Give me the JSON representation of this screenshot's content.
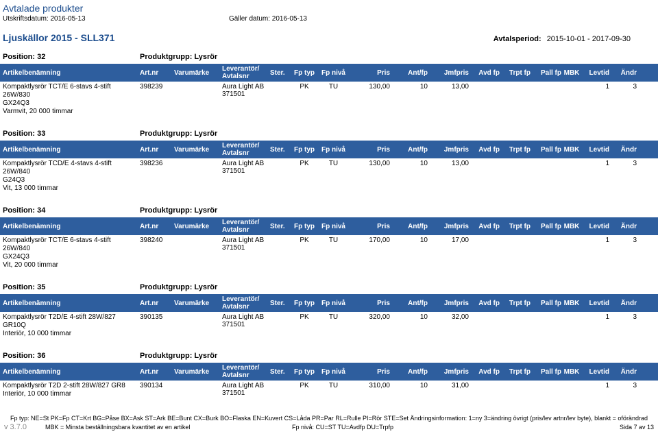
{
  "doc": {
    "title": "Avtalade produkter",
    "printLabel": "Utskriftsdatum: 2016-05-13",
    "validLabel": "Gäller datum: 2016-05-13"
  },
  "section": {
    "title": "Ljuskällor 2015 - SLL371",
    "periodLabel": "Avtalsperiod:",
    "periodValue": "2015-10-01 - 2017-09-30"
  },
  "headers": {
    "name": "Artikelbenämning",
    "artnr": "Art.nr",
    "varum": "Varumärke",
    "lev": "Leverantör/",
    "lev2": "Avtalsnr",
    "ster": "Ster.",
    "fptyp": "Fp typ",
    "fpniva": "Fp nivå",
    "pris": "Pris",
    "antfp": "Ant/fp",
    "jmfpris": "Jmfpris",
    "avdfp": "Avd fp",
    "trptfp": "Trpt fp",
    "pallfp": "Pall fp",
    "mbk": "MBK",
    "levtid": "Levtid",
    "andr": "Ändr"
  },
  "positions": [
    {
      "posLabel": "Position: 32",
      "group": "Produktgrupp: Lysrör",
      "row": {
        "name1": "Kompaktlysrör TCT/E 6-stavs 4-stift 26W/830",
        "name2": "GX24Q3",
        "name3": "Varmvit, 20 000 timmar",
        "artnr": "398239",
        "lev1": "Aura Light AB",
        "lev2": "371501",
        "fptyp": "PK",
        "fpniva": "TU",
        "pris": "130,00",
        "antfp": "10",
        "jmfpris": "13,00",
        "levtid": "1",
        "andr": "3"
      }
    },
    {
      "posLabel": "Position: 33",
      "group": "Produktgrupp: Lysrör",
      "row": {
        "name1": "Kompaktlysrör TCD/E 4-stavs 4-stift 26W/840",
        "name2": " G24Q3",
        "name3": "Vit, 13 000 timmar",
        "artnr": "398236",
        "lev1": "Aura Light AB",
        "lev2": "371501",
        "fptyp": "PK",
        "fpniva": "TU",
        "pris": "130,00",
        "antfp": "10",
        "jmfpris": "13,00",
        "levtid": "1",
        "andr": "3"
      }
    },
    {
      "posLabel": "Position: 34",
      "group": "Produktgrupp: Lysrör",
      "row": {
        "name1": "Kompaktlysrör TCT/E 6-stavs 4-stift 26W/840",
        "name2": "GX24Q3",
        "name3": "Vit, 20 000 timmar",
        "artnr": "398240",
        "lev1": "Aura Light AB",
        "lev2": "371501",
        "fptyp": "PK",
        "fpniva": "TU",
        "pris": "170,00",
        "antfp": "10",
        "jmfpris": "17,00",
        "levtid": "1",
        "andr": "3"
      }
    },
    {
      "posLabel": "Position: 35",
      "group": "Produktgrupp: Lysrör",
      "row": {
        "name1": "Kompaktlysrör T2D/E 4-stift 28W/827 GR10Q",
        "name2": "Interiör, 10 000 timmar",
        "name3": "",
        "artnr": "390135",
        "lev1": "Aura Light AB",
        "lev2": "371501",
        "fptyp": "PK",
        "fpniva": "TU",
        "pris": "320,00",
        "antfp": "10",
        "jmfpris": "32,00",
        "levtid": "1",
        "andr": "3"
      }
    },
    {
      "posLabel": "Position: 36",
      "group": "Produktgrupp: Lysrör",
      "row": {
        "name1": "Kompaktlysrör T2D 2-stift 28W/827 GR8",
        "name2": "Interiör, 10 000 timmar",
        "name3": "",
        "artnr": "390134",
        "lev1": "Aura Light AB",
        "lev2": "371501",
        "fptyp": "PK",
        "fpniva": "TU",
        "pris": "310,00",
        "antfp": "10",
        "jmfpris": "31,00",
        "levtid": "1",
        "andr": "3"
      }
    }
  ],
  "footer": {
    "legend": "Fp typ: NE=St PK=Fp CT=Krt BG=Påse BX=Ask ST=Ark BE=Bunt CX=Burk BO=Flaska EN=Kuvert CS=Låda PR=Par RL=Rulle PI=Rör STE=Set Ändringsinformation: 1=ny 3=ändring övrigt (pris/lev artnr/lev byte), blankt = oförändrad",
    "version": "v 3.7.0",
    "mbk": "MBK = Minsta beställningsbara kvantitet av en artikel",
    "fpniva": "Fp nivå: CU=ST TU=Avdfp DU=Trpfp",
    "page": "Sida 7 av 13"
  },
  "colors": {
    "headerBg": "#2e5e9e",
    "headerText": "#ffffff",
    "titleColor": "#1a4b8c"
  }
}
